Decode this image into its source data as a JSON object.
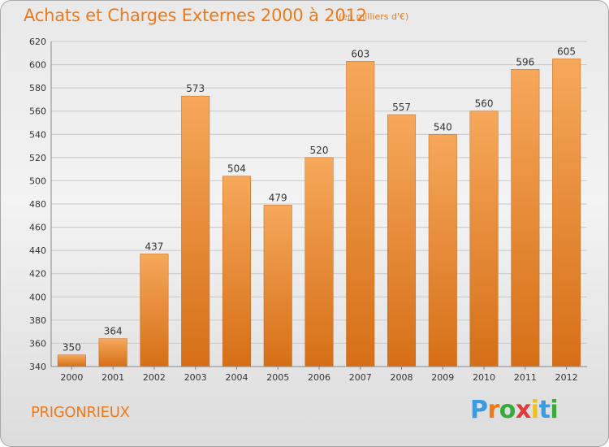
{
  "title": "Achats et Charges Externes 2000 à 2012",
  "unit": "(en milliers d'€)",
  "commune": "PRIGONRIEUX",
  "logo": {
    "letters": [
      "P",
      "r",
      "o",
      "x",
      "i",
      "t",
      "i"
    ]
  },
  "colors": {
    "bar_top": "#f6a85a",
    "bar_bottom": "#d66f17",
    "accent": "#f07a1a",
    "grid": "#c8c8c8"
  },
  "chart_data": {
    "type": "bar",
    "title": "Achats et Charges Externes 2000 à 2012",
    "subtitle": "(en milliers d'€)",
    "xlabel": "",
    "ylabel": "",
    "categories": [
      "2000",
      "2001",
      "2002",
      "2003",
      "2004",
      "2005",
      "2006",
      "2007",
      "2008",
      "2009",
      "2010",
      "2011",
      "2012"
    ],
    "values": [
      350,
      364,
      437,
      573,
      504,
      479,
      520,
      603,
      557,
      540,
      560,
      596,
      605
    ],
    "ylim": [
      340,
      620
    ],
    "yticks": [
      340,
      360,
      380,
      400,
      420,
      440,
      460,
      480,
      500,
      520,
      540,
      560,
      580,
      600,
      620
    ],
    "grid": true,
    "legend": "none"
  }
}
